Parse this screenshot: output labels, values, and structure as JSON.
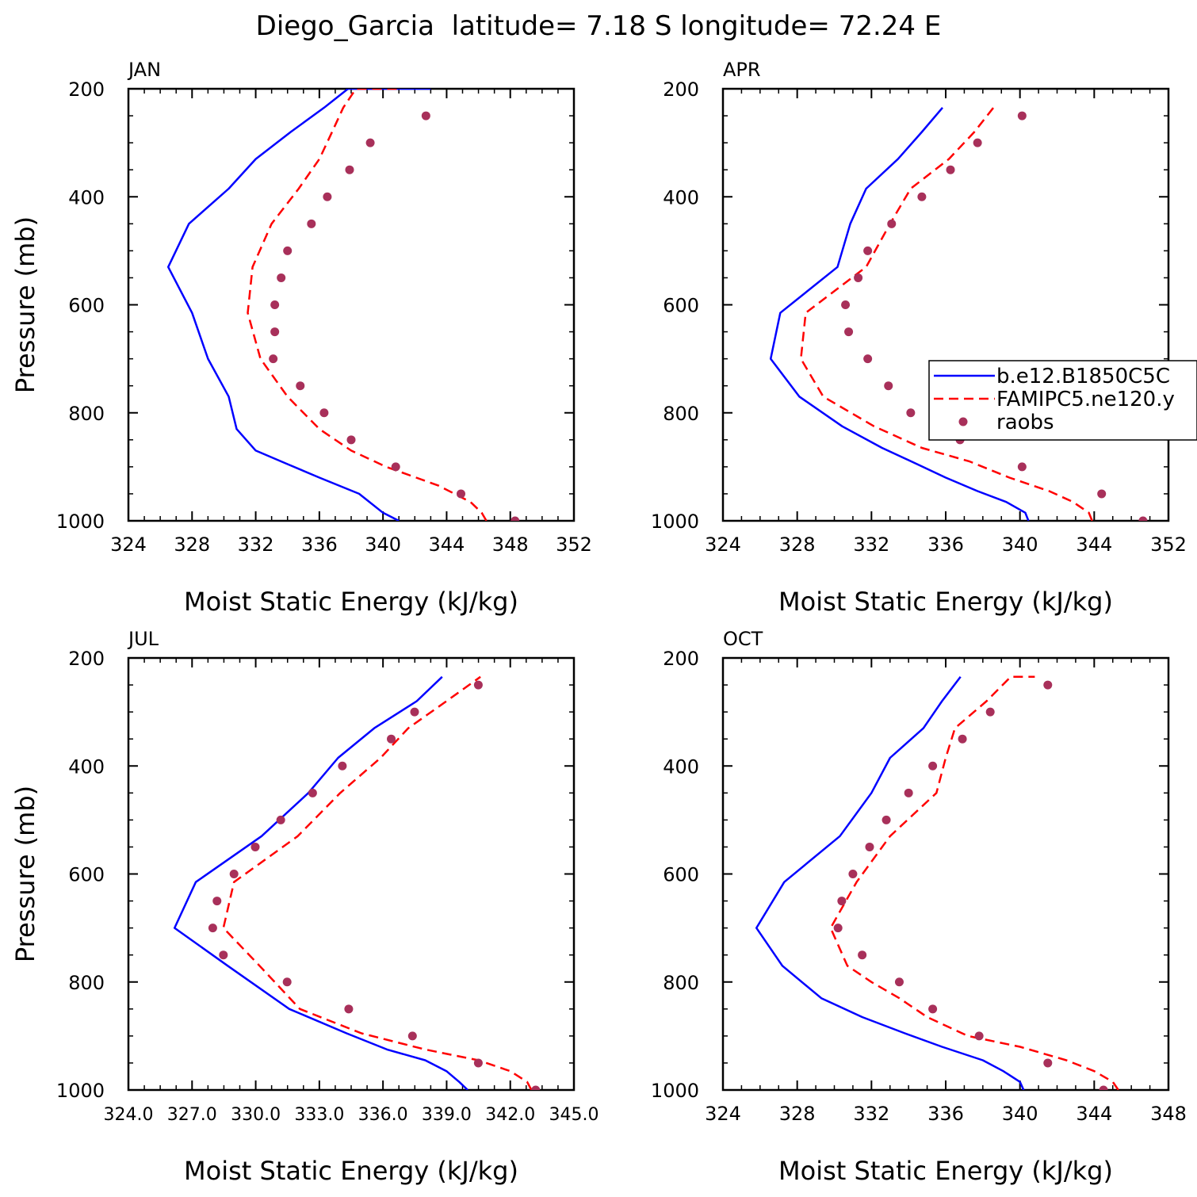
{
  "figure_title": "Diego_Garcia  latitude= 7.18 S longitude= 72.24 E",
  "colors": {
    "model1": "#0000ff",
    "model2": "#ff0000",
    "raobs": "#a8305a"
  },
  "chart_data": [
    {
      "type": "line",
      "panel": "JAN",
      "xlabel": "Moist Static Energy (kJ/kg)",
      "ylabel": "Pressure (mb)",
      "xlim": [
        324,
        352
      ],
      "ylim": [
        1000,
        200
      ],
      "x_ticks": [
        "324",
        "328",
        "332",
        "336",
        "340",
        "344",
        "348",
        "352"
      ],
      "y_ticks": [
        "200",
        "400",
        "600",
        "800",
        "1000"
      ],
      "series": [
        {
          "name": "b.e12.B1850C5C",
          "style": "solid",
          "x": [
            341.0,
            340.0,
            338.5,
            336.0,
            334.0,
            332.0,
            330.8,
            330.3,
            329.0,
            328.0,
            326.5,
            327.8,
            330.3,
            332.0,
            334.2,
            336.3,
            337.8,
            339.0,
            340.3,
            341.0,
            342.1,
            343.0
          ],
          "y": [
            1000,
            985,
            950,
            920,
            895,
            870,
            830,
            770,
            700,
            615,
            530,
            450,
            385,
            330,
            280,
            235,
            200,
            200,
            200,
            200,
            200,
            200
          ]
        },
        {
          "name": "FAMIPC5.ne120.y",
          "style": "dashed",
          "x": [
            346.5,
            346.2,
            345.5,
            343.5,
            340.2,
            338.0,
            336.0,
            334.0,
            332.3,
            331.5,
            331.8,
            333.0,
            334.7,
            336.0,
            336.8,
            337.5,
            338.3,
            339.1,
            340.2,
            341.2
          ],
          "y": [
            1000,
            985,
            965,
            935,
            900,
            870,
            830,
            770,
            700,
            615,
            530,
            450,
            385,
            330,
            280,
            235,
            200,
            200,
            200,
            200
          ]
        },
        {
          "name": "raobs",
          "style": "markers",
          "x": [
            348.3,
            344.9,
            340.8,
            338.0,
            336.3,
            334.8,
            333.1,
            333.2,
            333.2,
            333.6,
            334.0,
            335.5,
            336.5,
            337.9,
            339.2,
            342.7
          ],
          "y": [
            1000,
            950,
            900,
            850,
            800,
            750,
            700,
            650,
            600,
            550,
            500,
            450,
            400,
            350,
            300,
            250
          ]
        }
      ]
    },
    {
      "type": "line",
      "panel": "APR",
      "xlabel": "Moist Static Energy (kJ/kg)",
      "ylabel": "",
      "xlim": [
        324,
        352
      ],
      "ylim": [
        1000,
        200
      ],
      "x_ticks": [
        "324",
        "328",
        "332",
        "336",
        "340",
        "344",
        "352"
      ],
      "y_ticks": [
        "200",
        "400",
        "600",
        "800",
        "1000"
      ],
      "legend": "right",
      "series": [
        {
          "name": "b.e12.B1850C5C",
          "style": "solid",
          "x": [
            343.2,
            343.0,
            341.8,
            340.0,
            338.0,
            336.2,
            334.0,
            331.5,
            328.8,
            327.0,
            327.6,
            331.2,
            332.0,
            333.0,
            335.0,
            336.5,
            337.8
          ],
          "y": [
            1000,
            985,
            965,
            945,
            920,
            895,
            865,
            825,
            770,
            700,
            615,
            530,
            450,
            385,
            330,
            280,
            235
          ]
        },
        {
          "name": "FAMIPC5.ne120.y",
          "style": "dashed",
          "x": [
            347.2,
            347.0,
            346.0,
            344.5,
            342.0,
            339.5,
            336.5,
            333.5,
            330.3,
            328.9,
            329.2,
            333.0,
            334.5,
            335.8,
            338.2,
            339.8,
            341.0
          ],
          "y": [
            1000,
            985,
            965,
            945,
            920,
            890,
            865,
            825,
            770,
            700,
            615,
            530,
            450,
            385,
            330,
            280,
            235
          ]
        },
        {
          "name": "raobs",
          "style": "markers",
          "x": [
            350.4,
            347.8,
            342.8,
            338.9,
            335.8,
            334.4,
            333.1,
            331.9,
            331.7,
            332.5,
            333.1,
            334.6,
            336.5,
            338.3,
            340.0,
            342.8
          ],
          "y": [
            1000,
            950,
            900,
            850,
            800,
            750,
            700,
            650,
            600,
            550,
            500,
            450,
            400,
            350,
            300,
            250
          ]
        }
      ]
    },
    {
      "type": "line",
      "panel": "JUL",
      "xlabel": "Moist Static Energy (kJ/kg)",
      "ylabel": "Pressure (mb)",
      "xlim": [
        324.03,
        345.0
      ],
      "ylim": [
        1000,
        200
      ],
      "x_ticks": [
        "324.0",
        "327.0",
        "330.0",
        "333.0",
        "336.0",
        "339.0",
        "342.0",
        "345.0"
      ],
      "y_ticks": [
        "200",
        "400",
        "600",
        "800",
        "1000"
      ],
      "series": [
        {
          "name": "b.e12.B1850C5C",
          "style": "solid",
          "x": [
            340.0,
            339.6,
            339.0,
            338.0,
            336.2,
            334.3,
            331.6,
            328.7,
            326.2,
            327.2,
            330.3,
            332.5,
            333.9,
            335.6,
            337.6,
            338.8
          ],
          "y": [
            1000,
            985,
            965,
            945,
            925,
            895,
            850,
            770,
            700,
            615,
            530,
            450,
            385,
            330,
            280,
            235
          ]
        },
        {
          "name": "FAMIPC5.ne120.y",
          "style": "dashed",
          "x": [
            343.0,
            342.8,
            342.0,
            340.5,
            338.0,
            335.0,
            332.1,
            330.2,
            328.5,
            329.0,
            332.0,
            334.0,
            335.9,
            337.2,
            339.0,
            340.6
          ],
          "y": [
            1000,
            985,
            965,
            945,
            925,
            895,
            850,
            770,
            700,
            615,
            530,
            450,
            385,
            330,
            280,
            235
          ]
        },
        {
          "name": "raobs",
          "style": "markers",
          "x": [
            343.2,
            340.5,
            337.4,
            334.4,
            331.5,
            328.5,
            328.0,
            328.2,
            329.0,
            330.0,
            331.2,
            332.7,
            334.1,
            336.4,
            337.5,
            340.5
          ],
          "y": [
            1000,
            950,
            900,
            850,
            800,
            750,
            700,
            650,
            600,
            550,
            500,
            450,
            400,
            350,
            300,
            250
          ]
        }
      ]
    },
    {
      "type": "line",
      "panel": "OCT",
      "xlabel": "Moist Static Energy (kJ/kg)",
      "ylabel": "",
      "xlim": [
        324,
        348
      ],
      "ylim": [
        1000,
        200
      ],
      "x_ticks": [
        "324",
        "328",
        "332",
        "336",
        "340",
        "344",
        "348"
      ],
      "y_ticks": [
        "200",
        "400",
        "600",
        "800",
        "1000"
      ],
      "series": [
        {
          "name": "b.e12.B1850C5C",
          "style": "solid",
          "x": [
            340.2,
            340.0,
            339.1,
            338.0,
            335.8,
            333.8,
            331.5,
            329.3,
            327.2,
            325.8,
            327.3,
            330.3,
            332.0,
            333.0,
            334.8,
            335.8,
            336.8
          ],
          "y": [
            1000,
            985,
            965,
            945,
            920,
            895,
            865,
            830,
            770,
            700,
            615,
            530,
            450,
            385,
            330,
            280,
            235
          ]
        },
        {
          "name": "FAMIPC5.ne120.y",
          "style": "dashed",
          "x": [
            345.3,
            345.0,
            344.0,
            342.5,
            340.0,
            337.2,
            335.0,
            333.5,
            332.0,
            330.7,
            329.8,
            331.2,
            333.0,
            335.5,
            336.0,
            336.5,
            338.2,
            339.5,
            340.8
          ],
          "y": [
            1000,
            985,
            965,
            945,
            920,
            900,
            865,
            830,
            800,
            770,
            700,
            615,
            530,
            450,
            385,
            330,
            280,
            235,
            235
          ]
        },
        {
          "name": "raobs",
          "style": "markers",
          "x": [
            344.5,
            341.5,
            337.8,
            335.3,
            333.5,
            331.5,
            330.2,
            330.4,
            331.0,
            331.9,
            332.8,
            334.0,
            335.3,
            336.9,
            338.4,
            341.5
          ],
          "y": [
            1000,
            950,
            900,
            850,
            800,
            750,
            700,
            650,
            600,
            550,
            500,
            450,
            400,
            350,
            300,
            250
          ]
        }
      ]
    }
  ]
}
